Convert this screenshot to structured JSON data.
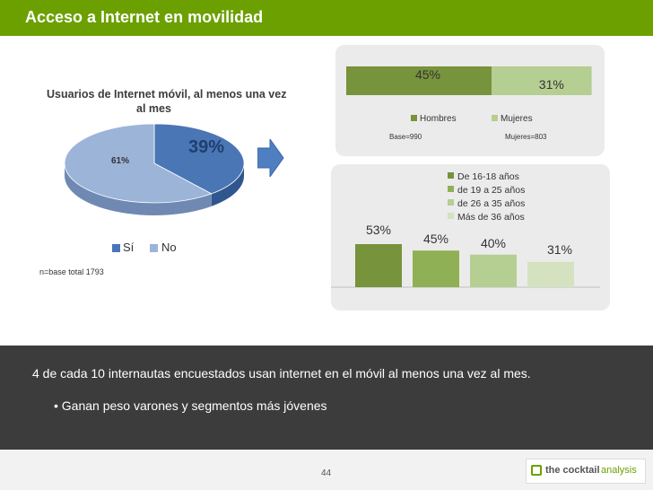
{
  "title": "Acceso a Internet en movilidad",
  "pie": {
    "title_line1": "Usuarios de Internet móvil, al menos una vez",
    "title_line2": "al mes",
    "legend": [
      "Sí",
      "No"
    ],
    "base_note": "n=base total 1793"
  },
  "gender": {
    "base_hombres": "Base=990",
    "base_mujeres": "Mujeres=803"
  },
  "summary": {
    "main": "4 de cada 10 internautas  encuestados usan internet en el móvil al menos una vez al mes.",
    "bullet": "• Ganan peso varones y segmentos más jóvenes"
  },
  "footer": {
    "page_number": "44",
    "logo_text_bold": "the cocktail",
    "logo_text_light": " analysis"
  },
  "colors": {
    "title_bar": "#6ba000",
    "pie_si": "#4a76b6",
    "pie_no": "#9cb4d8",
    "green_dark": "#77933c",
    "green_mid": "#8fb054",
    "green_light": "#b5ce92",
    "green_pale": "#d4e2c0"
  },
  "chart_data": [
    {
      "type": "pie",
      "title": "Usuarios de Internet móvil, al menos una vez al mes",
      "categories": [
        "Sí",
        "No"
      ],
      "values": [
        39,
        61
      ],
      "data_labels": [
        "39%",
        "61%"
      ],
      "legend_position": "bottom"
    },
    {
      "type": "bar",
      "orientation": "horizontal-stacked",
      "categories": [
        "Hombres",
        "Mujeres"
      ],
      "values": [
        45,
        31
      ],
      "data_labels": [
        "45%",
        "31%"
      ],
      "legend_position": "bottom"
    },
    {
      "type": "bar",
      "categories": [
        "De 16-18 años",
        "de 19 a 25 años",
        "de 26 a 35 años",
        "Más de 36 años"
      ],
      "values": [
        53,
        45,
        40,
        31
      ],
      "data_labels": [
        "53%",
        "45%",
        "40%",
        "31%"
      ],
      "legend_position": "top-right",
      "ylim": [
        0,
        60
      ]
    }
  ]
}
